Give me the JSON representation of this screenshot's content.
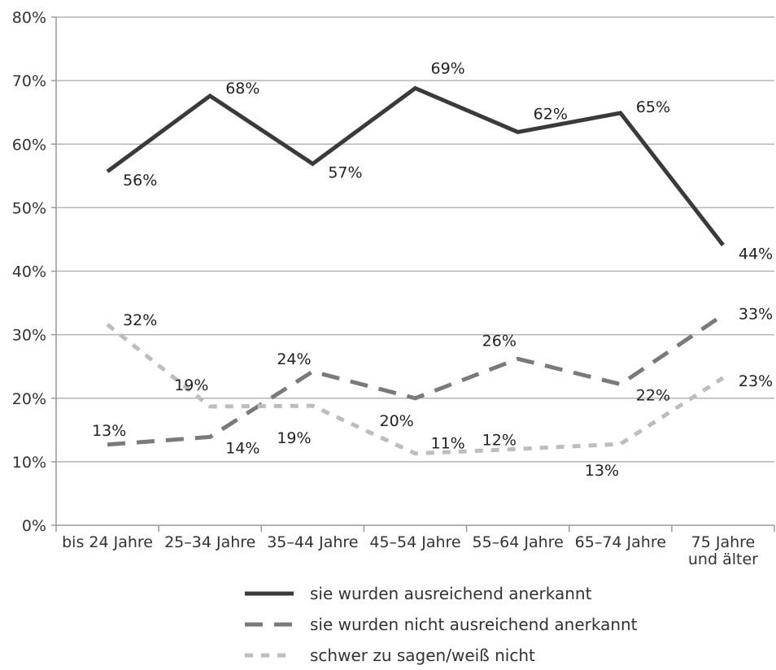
{
  "chart_data": {
    "type": "line",
    "categories": [
      "bis 24 Jahre",
      "25–34 Jahre",
      "35–44 Jahre",
      "45–54 Jahre",
      "55–64 Jahre",
      "65–74 Jahre",
      "75 Jahre\nund älter"
    ],
    "y_ticks": [
      "0%",
      "10%",
      "20%",
      "30%",
      "40%",
      "50%",
      "60%",
      "70%",
      "80%"
    ],
    "ylim": [
      0,
      80
    ],
    "grid": true,
    "legend_position": "bottom",
    "series": [
      {
        "name": "sie wurden ausreichend anerkannt",
        "color": "#3a3a3a",
        "dash": "solid",
        "values": [
          55.7,
          67.6,
          56.9,
          68.8,
          61.9,
          64.9,
          44.1
        ],
        "labels": [
          "56%",
          "68%",
          "57%",
          "69%",
          "62%",
          "65%",
          "44%"
        ]
      },
      {
        "name": "sie wurden nicht ausreichend anerkannt",
        "color": "#7a7a7a",
        "dash": "dashed",
        "values": [
          12.7,
          13.9,
          24.2,
          20.0,
          26.2,
          22.2,
          33.1
        ],
        "labels": [
          "13%",
          "14%",
          "24%",
          "20%",
          "26%",
          "22%",
          "33%"
        ]
      },
      {
        "name": "schwer zu sagen/weiß nicht",
        "color": "#bdbdbd",
        "dash": "dotted",
        "values": [
          31.6,
          18.7,
          18.8,
          11.3,
          12.0,
          12.8,
          23.2
        ],
        "labels": [
          "32%",
          "19%",
          "19%",
          "11%",
          "12%",
          "13%",
          "23%"
        ]
      }
    ]
  }
}
